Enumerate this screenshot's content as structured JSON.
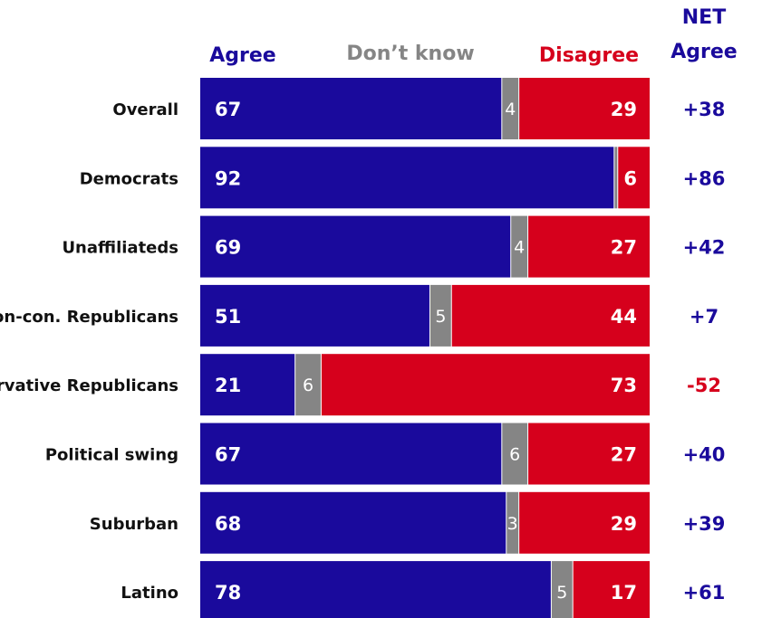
{
  "chart_data": {
    "type": "bar",
    "stacked": true,
    "orientation": "horizontal",
    "headers": {
      "agree": "Agree",
      "dont_know": "Don’t know",
      "disagree": "Disagree",
      "net_line1": "NET",
      "net_line2": "Agree"
    },
    "categories": [
      "Overall",
      "Democrats",
      "Unaffiliateds",
      "Non-con. Republicans",
      "Conservative Republicans",
      "Political swing",
      "Suburban",
      "Latino"
    ],
    "series": [
      {
        "name": "Agree",
        "values": [
          67,
          92,
          69,
          51,
          21,
          67,
          68,
          78
        ]
      },
      {
        "name": "Don’t know",
        "values": [
          4,
          1,
          4,
          5,
          6,
          6,
          3,
          5
        ]
      },
      {
        "name": "Disagree",
        "values": [
          29,
          6,
          27,
          44,
          73,
          27,
          29,
          17
        ]
      }
    ],
    "data_labels": {
      "agree": [
        "67",
        "92",
        "69",
        "51",
        "21",
        "67",
        "68",
        "78"
      ],
      "dont_know": [
        "4",
        "",
        "4",
        "5",
        "6",
        "6",
        "3",
        "5"
      ],
      "disagree": [
        "29",
        "6",
        "27",
        "44",
        "73",
        "27",
        "29",
        "17"
      ]
    },
    "net_agree": [
      "+38",
      "+86",
      "+42",
      "+7",
      "-52",
      "+40",
      "+39",
      "+61"
    ],
    "xlim": [
      0,
      100
    ]
  },
  "colors": {
    "agree": "#1a0a9c",
    "dont_know": "#858585",
    "disagree": "#d6001c",
    "net_positive": "#1a0a9c",
    "net_negative": "#d6001c",
    "category_text": "#111111"
  }
}
